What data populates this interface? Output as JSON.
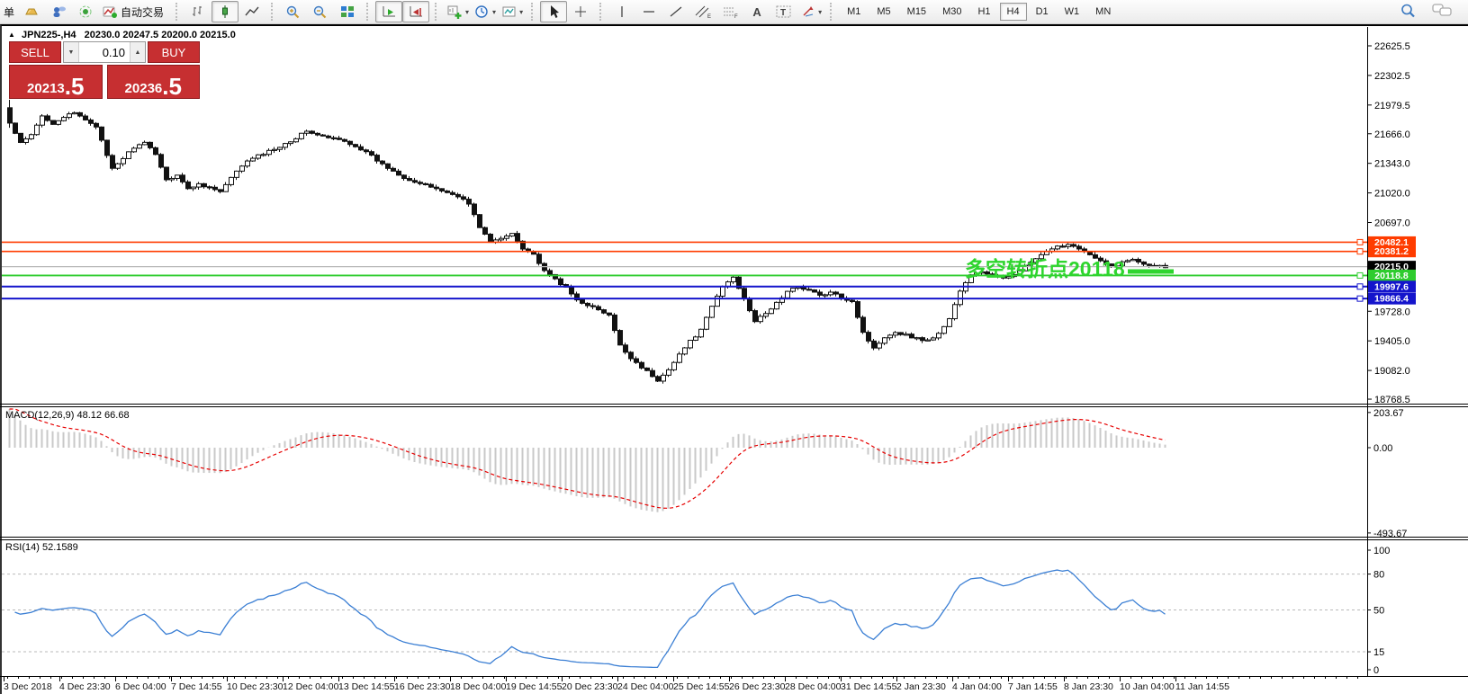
{
  "colors": {
    "sell_buy_red": "#c62f31",
    "resistance_orange": "#ff3c00",
    "support_blue": "#1414cc",
    "pivot_green": "#2ecc2e",
    "current_price_line": "#b8b8b8",
    "current_price_label_bg": "#000000",
    "macd_histogram": "#c9c9c9",
    "macd_signal": "#e60000",
    "rsi_line": "#3b7fd4",
    "annotation_green": "#2ed52e"
  },
  "toolbar": {
    "left_partial_label": "单",
    "autotrade_label": "自动交易",
    "timeframes": [
      "M1",
      "M5",
      "M15",
      "M30",
      "H1",
      "H4",
      "D1",
      "W1",
      "MN"
    ],
    "selected_timeframe": "H4",
    "icon_names": [
      "gold-icon",
      "cloud-user-icon",
      "signal-icon",
      "autotrade-icon",
      "bar-chart-icon",
      "candlestick-icon",
      "line-chart-icon",
      "zoom-in-icon",
      "zoom-out-icon",
      "tile-windows-icon",
      "autoscroll-icon",
      "chart-shift-icon",
      "new-chart-icon",
      "period-icon",
      "template-icon",
      "cursor-icon",
      "crosshair-icon",
      "vline-icon",
      "hline-icon",
      "trendline-icon",
      "channel-icon",
      "fibonacci-icon",
      "text-icon",
      "label-icon",
      "shapes-icon",
      "search-icon",
      "chat-icon"
    ]
  },
  "glyphs": {
    "dropdown": "▾",
    "collapse": "▲",
    "vol_down": "▼",
    "vol_up": "▲"
  },
  "chart": {
    "symbol": "JPN225-,H4",
    "ohlc": "20230.0 20247.5 20200.0 20215.0"
  },
  "trade_panel": {
    "sell_label": "SELL",
    "buy_label": "BUY",
    "volume": "0.10",
    "sell_price_int": "20213",
    "sell_price_dec": ".5",
    "buy_price_int": "20236",
    "buy_price_dec": ".5"
  },
  "price_axis": {
    "ticks": [
      "22625.5",
      "22302.5",
      "21979.5",
      "21666.0",
      "21343.0",
      "21020.0",
      "20697.0",
      "19728.0",
      "19405.0",
      "19082.0",
      "18768.5"
    ]
  },
  "hlines": [
    {
      "label": "20482.1",
      "value": 20482.1,
      "color": "#ff3c00",
      "width": 1.6,
      "handle": true
    },
    {
      "label": "20381.2",
      "value": 20381.2,
      "color": "#ff3c00",
      "width": 1.6,
      "handle": true
    },
    {
      "label": "20215.0",
      "value": 20215.0,
      "color": "#b8b8b8",
      "label_bg": "#000000",
      "width": 1.2,
      "handle": false
    },
    {
      "label": "20118.8",
      "value": 20118.8,
      "color": "#2ecc2e",
      "width": 1.8,
      "handle": true
    },
    {
      "label": "19997.6",
      "value": 19997.6,
      "color": "#1414cc",
      "width": 2,
      "handle": true
    },
    {
      "label": "19866.4",
      "value": 19866.4,
      "color": "#1414cc",
      "width": 2,
      "handle": true
    }
  ],
  "annotation": {
    "text": "多空转折点20118",
    "color": "#2ed52e"
  },
  "indicators": {
    "macd": {
      "label": "MACD(12,26,9) 48.12 66.68",
      "axis": [
        "203.67",
        "0.00",
        "-493.67"
      ]
    },
    "rsi": {
      "label": "RSI(14) 52.1589",
      "axis": [
        "100",
        "80",
        "50",
        "15",
        "0"
      ],
      "levels": [
        80,
        50,
        15
      ]
    }
  },
  "time_axis": {
    "labels": [
      "3 Dec 2018",
      "4 Dec 23:30",
      "6 Dec 04:00",
      "7 Dec 14:55",
      "10 Dec 23:30",
      "12 Dec 04:00",
      "13 Dec 14:55",
      "16 Dec 23:30",
      "18 Dec 04:00",
      "19 Dec 14:55",
      "20 Dec 23:30",
      "24 Dec 04:00",
      "25 Dec 14:55",
      "26 Dec 23:30",
      "28 Dec 04:00",
      "31 Dec 14:55",
      "2 Jan 23:30",
      "4 Jan 04:00",
      "7 Jan 14:55",
      "8 Jan 23:30",
      "10 Jan 04:00",
      "11 Jan 14:55"
    ]
  },
  "chart_data": {
    "type": "candlestick",
    "symbol": "JPN225-",
    "timeframe": "H4",
    "bars": 215,
    "title": "JPN225-,H4 20230.0 20247.5 20200.0 20215.0",
    "price_range_visible": [
      18768.5,
      22625.5
    ],
    "close_waypoints": [
      [
        0,
        21780
      ],
      [
        2,
        21560
      ],
      [
        4,
        21650
      ],
      [
        6,
        21860
      ],
      [
        8,
        21780
      ],
      [
        10,
        21850
      ],
      [
        12,
        21890
      ],
      [
        14,
        21820
      ],
      [
        16,
        21750
      ],
      [
        18,
        21420
      ],
      [
        19,
        21280
      ],
      [
        21,
        21400
      ],
      [
        23,
        21520
      ],
      [
        25,
        21560
      ],
      [
        27,
        21450
      ],
      [
        29,
        21160
      ],
      [
        31,
        21220
      ],
      [
        33,
        21060
      ],
      [
        35,
        21120
      ],
      [
        37,
        21080
      ],
      [
        39,
        21030
      ],
      [
        41,
        21180
      ],
      [
        43,
        21320
      ],
      [
        45,
        21400
      ],
      [
        47,
        21450
      ],
      [
        49,
        21500
      ],
      [
        51,
        21560
      ],
      [
        53,
        21620
      ],
      [
        55,
        21700
      ],
      [
        57,
        21650
      ],
      [
        59,
        21620
      ],
      [
        61,
        21600
      ],
      [
        63,
        21560
      ],
      [
        65,
        21500
      ],
      [
        67,
        21420
      ],
      [
        69,
        21330
      ],
      [
        71,
        21260
      ],
      [
        73,
        21190
      ],
      [
        75,
        21140
      ],
      [
        77,
        21100
      ],
      [
        79,
        21070
      ],
      [
        81,
        21020
      ],
      [
        83,
        20990
      ],
      [
        85,
        20900
      ],
      [
        87,
        20650
      ],
      [
        89,
        20480
      ],
      [
        91,
        20520
      ],
      [
        93,
        20580
      ],
      [
        95,
        20420
      ],
      [
        97,
        20350
      ],
      [
        99,
        20160
      ],
      [
        101,
        20080
      ],
      [
        103,
        19980
      ],
      [
        105,
        19850
      ],
      [
        107,
        19800
      ],
      [
        109,
        19740
      ],
      [
        111,
        19680
      ],
      [
        113,
        19350
      ],
      [
        115,
        19220
      ],
      [
        117,
        19120
      ],
      [
        119,
        19020
      ],
      [
        120,
        18960
      ],
      [
        122,
        19100
      ],
      [
        124,
        19260
      ],
      [
        126,
        19400
      ],
      [
        128,
        19520
      ],
      [
        130,
        19780
      ],
      [
        132,
        20000
      ],
      [
        134,
        20100
      ],
      [
        136,
        19870
      ],
      [
        138,
        19620
      ],
      [
        140,
        19700
      ],
      [
        142,
        19820
      ],
      [
        144,
        19940
      ],
      [
        146,
        20000
      ],
      [
        148,
        19960
      ],
      [
        150,
        19900
      ],
      [
        152,
        19930
      ],
      [
        154,
        19880
      ],
      [
        156,
        19840
      ],
      [
        158,
        19500
      ],
      [
        160,
        19320
      ],
      [
        162,
        19450
      ],
      [
        164,
        19500
      ],
      [
        166,
        19470
      ],
      [
        168,
        19430
      ],
      [
        170,
        19410
      ],
      [
        172,
        19480
      ],
      [
        174,
        19650
      ],
      [
        176,
        19950
      ],
      [
        178,
        20120
      ],
      [
        180,
        20160
      ],
      [
        182,
        20120
      ],
      [
        184,
        20080
      ],
      [
        186,
        20140
      ],
      [
        188,
        20220
      ],
      [
        190,
        20300
      ],
      [
        192,
        20370
      ],
      [
        194,
        20430
      ],
      [
        196,
        20460
      ],
      [
        198,
        20420
      ],
      [
        200,
        20340
      ],
      [
        202,
        20270
      ],
      [
        204,
        20210
      ],
      [
        206,
        20260
      ],
      [
        208,
        20300
      ],
      [
        210,
        20250
      ],
      [
        212,
        20230
      ],
      [
        214,
        20215
      ]
    ],
    "horizontal_lines": [
      20482.1,
      20381.2,
      20215.0,
      20118.8,
      19997.6,
      19866.4
    ],
    "indicators": [
      {
        "name": "MACD",
        "params": "12,26,9",
        "values": [
          48.12,
          66.68
        ],
        "axis_range": [
          -493.67,
          203.67
        ]
      },
      {
        "name": "RSI",
        "params": "14",
        "value": 52.1589,
        "axis_range": [
          0,
          100
        ],
        "levels": [
          80,
          50,
          15
        ]
      }
    ]
  }
}
